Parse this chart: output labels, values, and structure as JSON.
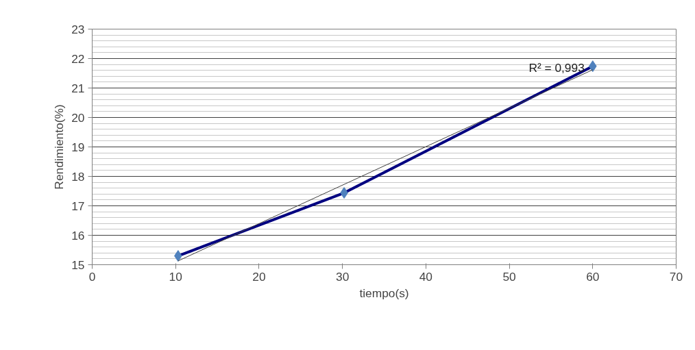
{
  "chart_data": {
    "type": "line",
    "xlabel": "tiempo(s)",
    "ylabel": "Rendimiento(%)",
    "xlim": [
      0,
      70
    ],
    "xticks": [
      0,
      10,
      20,
      30,
      40,
      50,
      60,
      70
    ],
    "ylim": [
      15,
      23
    ],
    "yticks": [
      15,
      16,
      17,
      18,
      19,
      20,
      21,
      22,
      23
    ],
    "grid": "y",
    "annotations": [
      "R² = 0,993"
    ],
    "series": [
      {
        "marker": "diamond",
        "color": "#000080",
        "colors": [
          "#4f81bd",
          "#4f81bd",
          "#4f81bd"
        ],
        "x": [
          10.3,
          30.2,
          60
        ],
        "values": [
          15.3,
          17.44,
          21.74
        ]
      },
      {
        "marker": "none",
        "color": "#404040",
        "x": [
          10.3,
          60
        ],
        "values": [
          15.13,
          21.62
        ]
      }
    ]
  }
}
